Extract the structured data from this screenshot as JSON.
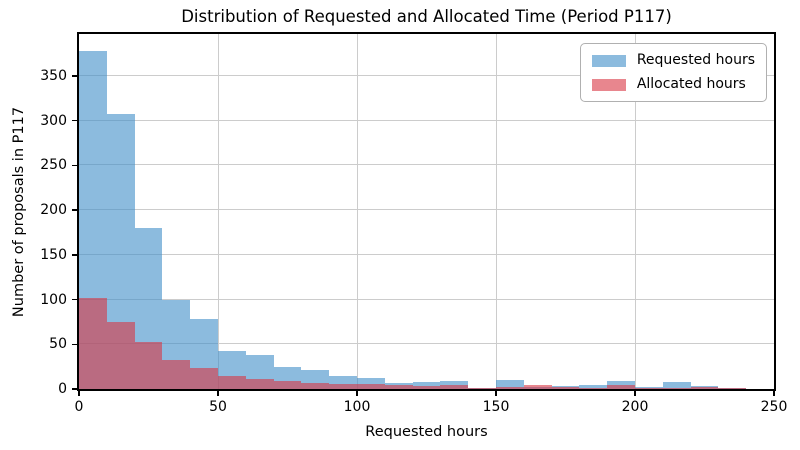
{
  "chart_data": {
    "type": "bar",
    "subtype": "overlapping-histogram",
    "title": "Distribution of Requested and Allocated Time (Period P117)",
    "xlabel": "Requested hours",
    "ylabel": "Number of proposals in P117",
    "xlim": [
      0,
      250
    ],
    "ylim": [
      0,
      397
    ],
    "bin_width": 10,
    "bin_edges_start": 0,
    "x_ticks": [
      0,
      50,
      100,
      150,
      200,
      250
    ],
    "y_ticks": [
      0,
      50,
      100,
      150,
      200,
      250,
      300,
      350
    ],
    "grid": true,
    "grid_color": "#cccccc",
    "spine_color": "#000000",
    "legend_position": "upper right",
    "series": [
      {
        "name": "Requested hours",
        "color": "rgba(63,141,200,0.6)",
        "values": [
          378,
          308,
          180,
          100,
          78,
          43,
          38,
          25,
          21,
          15,
          12,
          7,
          8,
          9,
          1,
          10,
          2,
          3,
          5,
          9,
          2,
          8,
          3,
          1,
          0
        ]
      },
      {
        "name": "Allocated hours",
        "color": "rgba(217,53,67,0.6)",
        "values": [
          102,
          75,
          53,
          33,
          23,
          15,
          11,
          9,
          7,
          6,
          6,
          4,
          3,
          5,
          1,
          2,
          4,
          2,
          1,
          4,
          1,
          1,
          2,
          1,
          0
        ]
      }
    ]
  }
}
